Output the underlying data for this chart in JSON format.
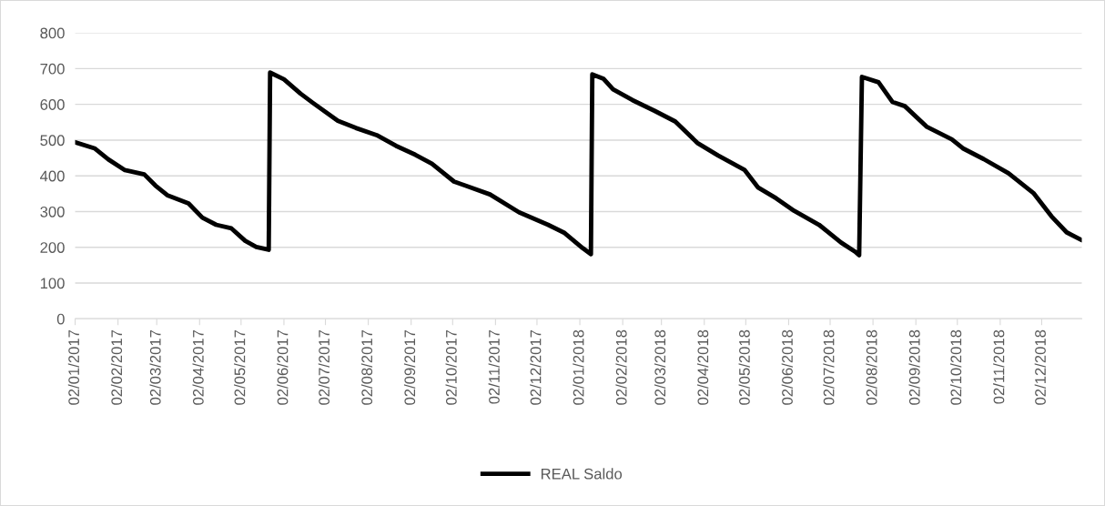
{
  "chart_data": {
    "type": "line",
    "xlim": [
      "2017-01-02",
      "2018-12-31"
    ],
    "xticks": [
      {
        "value": "2017-01-02",
        "label": "02/01/2017"
      },
      {
        "value": "2017-02-02",
        "label": "02/02/2017"
      },
      {
        "value": "2017-03-02",
        "label": "02/03/2017"
      },
      {
        "value": "2017-04-02",
        "label": "02/04/2017"
      },
      {
        "value": "2017-05-02",
        "label": "02/05/2017"
      },
      {
        "value": "2017-06-02",
        "label": "02/06/2017"
      },
      {
        "value": "2017-07-02",
        "label": "02/07/2017"
      },
      {
        "value": "2017-08-02",
        "label": "02/08/2017"
      },
      {
        "value": "2017-09-02",
        "label": "02/09/2017"
      },
      {
        "value": "2017-10-02",
        "label": "02/10/2017"
      },
      {
        "value": "2017-11-02",
        "label": "02/11/2017"
      },
      {
        "value": "2017-12-02",
        "label": "02/12/2017"
      },
      {
        "value": "2018-01-02",
        "label": "02/01/2018"
      },
      {
        "value": "2018-02-02",
        "label": "02/02/2018"
      },
      {
        "value": "2018-03-02",
        "label": "02/03/2018"
      },
      {
        "value": "2018-04-02",
        "label": "02/04/2018"
      },
      {
        "value": "2018-05-02",
        "label": "02/05/2018"
      },
      {
        "value": "2018-06-02",
        "label": "02/06/2018"
      },
      {
        "value": "2018-07-02",
        "label": "02/07/2018"
      },
      {
        "value": "2018-08-02",
        "label": "02/08/2018"
      },
      {
        "value": "2018-09-02",
        "label": "02/09/2018"
      },
      {
        "value": "2018-10-02",
        "label": "02/10/2018"
      },
      {
        "value": "2018-11-02",
        "label": "02/11/2018"
      },
      {
        "value": "2018-12-02",
        "label": "02/12/2018"
      }
    ],
    "ylim": [
      0,
      800
    ],
    "yticks": [
      0,
      100,
      200,
      300,
      400,
      500,
      600,
      700,
      800
    ],
    "grid": "y",
    "legend": "bottom",
    "marker": "none",
    "line_style": "solid",
    "x": [
      "2017-01-02",
      "2017-01-16",
      "2017-01-26",
      "2017-02-07",
      "2017-02-21",
      "2017-03-01",
      "2017-03-10",
      "2017-03-25",
      "2017-04-04",
      "2017-04-14",
      "2017-04-25",
      "2017-05-05",
      "2017-05-13",
      "2017-05-22",
      "2017-05-23",
      "2017-06-02",
      "2017-06-14",
      "2017-06-23",
      "2017-07-11",
      "2017-07-24",
      "2017-08-08",
      "2017-08-22",
      "2017-09-05",
      "2017-09-17",
      "2017-10-03",
      "2017-10-29",
      "2017-11-19",
      "2017-12-10",
      "2017-12-22",
      "2018-01-04",
      "2018-01-10",
      "2018-01-11",
      "2018-01-19",
      "2018-01-26",
      "2018-02-09",
      "2018-02-25",
      "2018-03-12",
      "2018-03-28",
      "2018-04-12",
      "2018-05-01",
      "2018-05-11",
      "2018-05-24",
      "2018-06-06",
      "2018-06-24",
      "2018-07-10",
      "2018-07-20",
      "2018-07-23",
      "2018-07-25",
      "2018-08-06",
      "2018-08-16",
      "2018-08-25",
      "2018-09-10",
      "2018-09-28",
      "2018-10-06",
      "2018-10-21",
      "2018-11-08",
      "2018-11-26",
      "2018-12-09",
      "2018-12-20",
      "2018-12-31"
    ],
    "series": [
      {
        "name": "REAL Saldo",
        "color": "#000000",
        "values": [
          494,
          477,
          446,
          416,
          404,
          373,
          345,
          323,
          283,
          263,
          253,
          218,
          201,
          193,
          689,
          670,
          630,
          604,
          554,
          534,
          514,
          484,
          459,
          434,
          384,
          348,
          298,
          263,
          240,
          198,
          181,
          684,
          672,
          642,
          612,
          582,
          552,
          492,
          457,
          417,
          367,
          337,
          302,
          263,
          213,
          188,
          178,
          677,
          662,
          607,
          595,
          537,
          502,
          477,
          447,
          407,
          352,
          287,
          242,
          220
        ]
      }
    ]
  }
}
